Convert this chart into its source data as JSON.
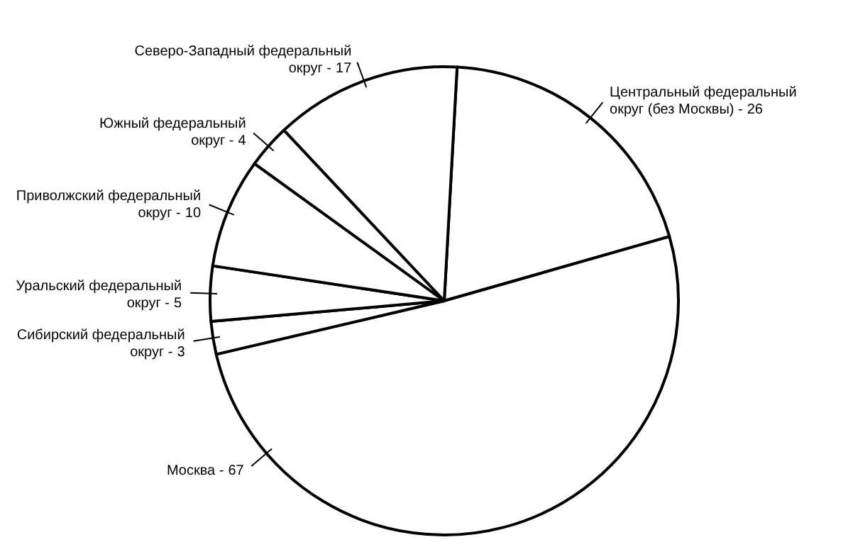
{
  "chart_data": {
    "type": "pie",
    "categories": [
      "Центральный федеральный округ (без Москвы) -",
      "Москва -",
      "Сибирский федеральный округ -",
      "Уральский федеральный округ -",
      "Приволжский федеральный округ -",
      "Южный федеральный округ -",
      "Северо-Западный федеральный округ -"
    ],
    "values": [
      26,
      67,
      3,
      5,
      10,
      4,
      17
    ],
    "colors": [
      "#ffffff",
      "#ffffff",
      "#ffffff",
      "#ffffff",
      "#ffffff",
      "#ffffff",
      "#ffffff"
    ],
    "data_labels": true
  }
}
